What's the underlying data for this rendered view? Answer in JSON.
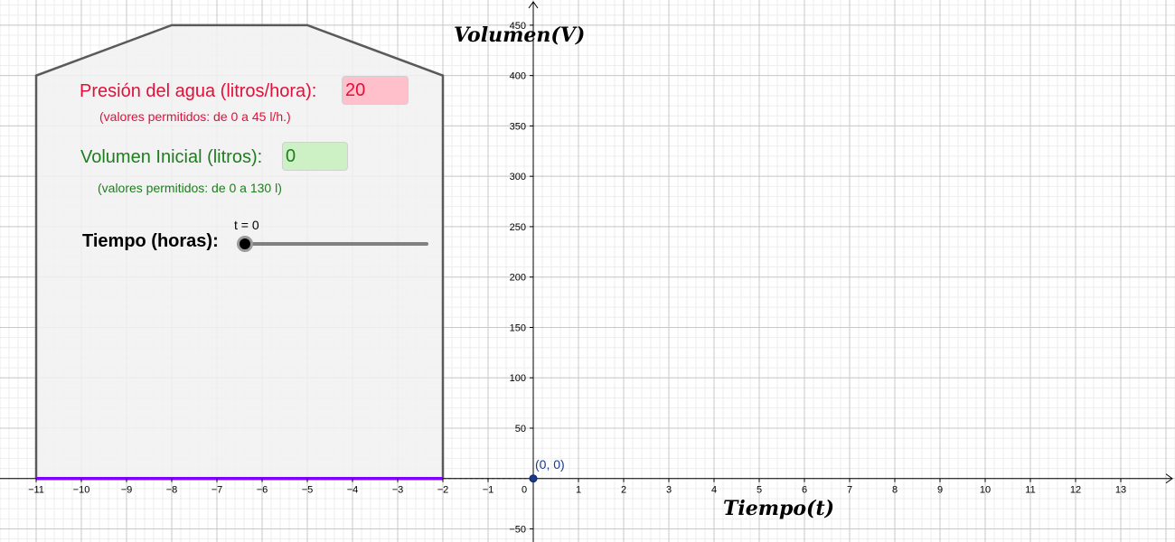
{
  "controls": {
    "pressure_label": "Presión del agua (litros/hora):",
    "pressure_value": "20",
    "pressure_note": "(valores permitidos: de 0 a 45 l/h.)",
    "volume_label": "Volumen Inicial (litros):",
    "volume_value": "0",
    "volume_note": "(valores permitidos: de 0 a 130 l)",
    "time_label": "Tiempo (horas):",
    "time_caption": "t = 0",
    "time_value": 0
  },
  "graph": {
    "x_axis_title": "Tiempo(t)",
    "y_axis_title": "Volumen(V)",
    "origin_label": "(0, 0)",
    "x_ticks": [
      "−11",
      "−10",
      "−9",
      "−8",
      "−7",
      "−6",
      "−5",
      "−4",
      "−3",
      "−2",
      "−1",
      "0",
      "1",
      "2",
      "3",
      "4",
      "5",
      "6",
      "7",
      "8",
      "9",
      "10",
      "11",
      "12",
      "13"
    ],
    "y_ticks": [
      "−50",
      "50",
      "100",
      "150",
      "200",
      "250",
      "300",
      "350",
      "400",
      "450"
    ],
    "x_range": [
      -11.8,
      14.2
    ],
    "y_range": [
      -63,
      475
    ],
    "tank_outline": [
      [
        -11,
        0
      ],
      [
        -11,
        400
      ],
      [
        -8,
        450
      ],
      [
        -5,
        450
      ],
      [
        -2,
        400
      ],
      [
        -2,
        0
      ]
    ],
    "water_segment": [
      [
        -11,
        0
      ],
      [
        -2,
        0
      ]
    ],
    "point": [
      0,
      0
    ],
    "colors": {
      "tank_fill": "#f1f1f1",
      "tank_stroke": "#5a5a5a",
      "water": "#7f00ff",
      "point": "#1a3a8a",
      "grid_major": "#c8c8c8",
      "grid_minor": "#eeeeee"
    }
  }
}
